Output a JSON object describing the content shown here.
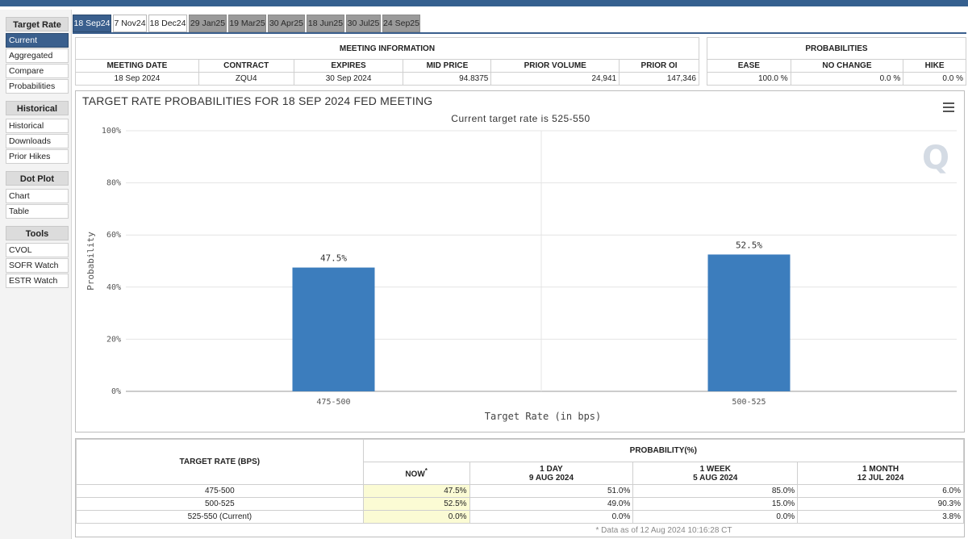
{
  "sidebar": {
    "sections": [
      {
        "title": "Target Rate",
        "items": [
          "Current",
          "Aggregated",
          "Compare",
          "Probabilities"
        ]
      },
      {
        "title": "Historical",
        "items": [
          "Historical",
          "Downloads",
          "Prior Hikes"
        ]
      },
      {
        "title": "Dot Plot",
        "items": [
          "Chart",
          "Table"
        ]
      },
      {
        "title": "Tools",
        "items": [
          "CVOL",
          "SOFR Watch",
          "ESTR Watch"
        ]
      }
    ],
    "active_item": "Current"
  },
  "tabs": [
    "18 Sep24",
    "7 Nov24",
    "18 Dec24",
    "29 Jan25",
    "19 Mar25",
    "30 Apr25",
    "18 Jun25",
    "30 Jul25",
    "24 Sep25"
  ],
  "meeting_info": {
    "title": "MEETING INFORMATION",
    "headers": [
      "MEETING DATE",
      "CONTRACT",
      "EXPIRES",
      "MID PRICE",
      "PRIOR VOLUME",
      "PRIOR OI"
    ],
    "values": [
      "18 Sep 2024",
      "ZQU4",
      "30 Sep 2024",
      "94.8375",
      "24,941",
      "147,346"
    ]
  },
  "probabilities": {
    "title": "PROBABILITIES",
    "headers": [
      "EASE",
      "NO CHANGE",
      "HIKE"
    ],
    "values": [
      "100.0 %",
      "0.0 %",
      "0.0 %"
    ]
  },
  "chart": {
    "title": "TARGET RATE PROBABILITIES FOR 18 SEP 2024 FED MEETING",
    "subtitle": "Current target rate is 525-550",
    "logo": "Q"
  },
  "chart_data": {
    "type": "bar",
    "title": "TARGET RATE PROBABILITIES FOR 18 SEP 2024 FED MEETING",
    "subtitle": "Current target rate is 525-550",
    "categories": [
      "475-500",
      "500-525"
    ],
    "values": [
      47.5,
      52.5
    ],
    "data_labels": [
      "47.5%",
      "52.5%"
    ],
    "xlabel": "Target Rate (in bps)",
    "ylabel": "Probability",
    "ylim": [
      0,
      100
    ],
    "yticks": [
      "0%",
      "20%",
      "40%",
      "60%",
      "80%",
      "100%"
    ],
    "ytick_values": [
      0,
      20,
      40,
      60,
      80,
      100
    ],
    "grid": true,
    "bar_color": "#3c7dbd"
  },
  "prob_table": {
    "target_header": "TARGET RATE (BPS)",
    "prob_header": "PROBABILITY(%)",
    "col_now": "NOW",
    "col_now_mark": "*",
    "cols": [
      {
        "label": "1 DAY",
        "date": "9 AUG 2024"
      },
      {
        "label": "1 WEEK",
        "date": "5 AUG 2024"
      },
      {
        "label": "1 MONTH",
        "date": "12 JUL 2024"
      }
    ],
    "rows": [
      {
        "rate": "475-500",
        "now": "47.5%",
        "d1": "51.0%",
        "w1": "85.0%",
        "m1": "6.0%"
      },
      {
        "rate": "500-525",
        "now": "52.5%",
        "d1": "49.0%",
        "w1": "15.0%",
        "m1": "90.3%"
      },
      {
        "rate": "525-550 (Current)",
        "now": "0.0%",
        "d1": "0.0%",
        "w1": "0.0%",
        "m1": "3.8%"
      }
    ],
    "footnote": "* Data as of 12 Aug 2024 10:16:28 CT"
  }
}
